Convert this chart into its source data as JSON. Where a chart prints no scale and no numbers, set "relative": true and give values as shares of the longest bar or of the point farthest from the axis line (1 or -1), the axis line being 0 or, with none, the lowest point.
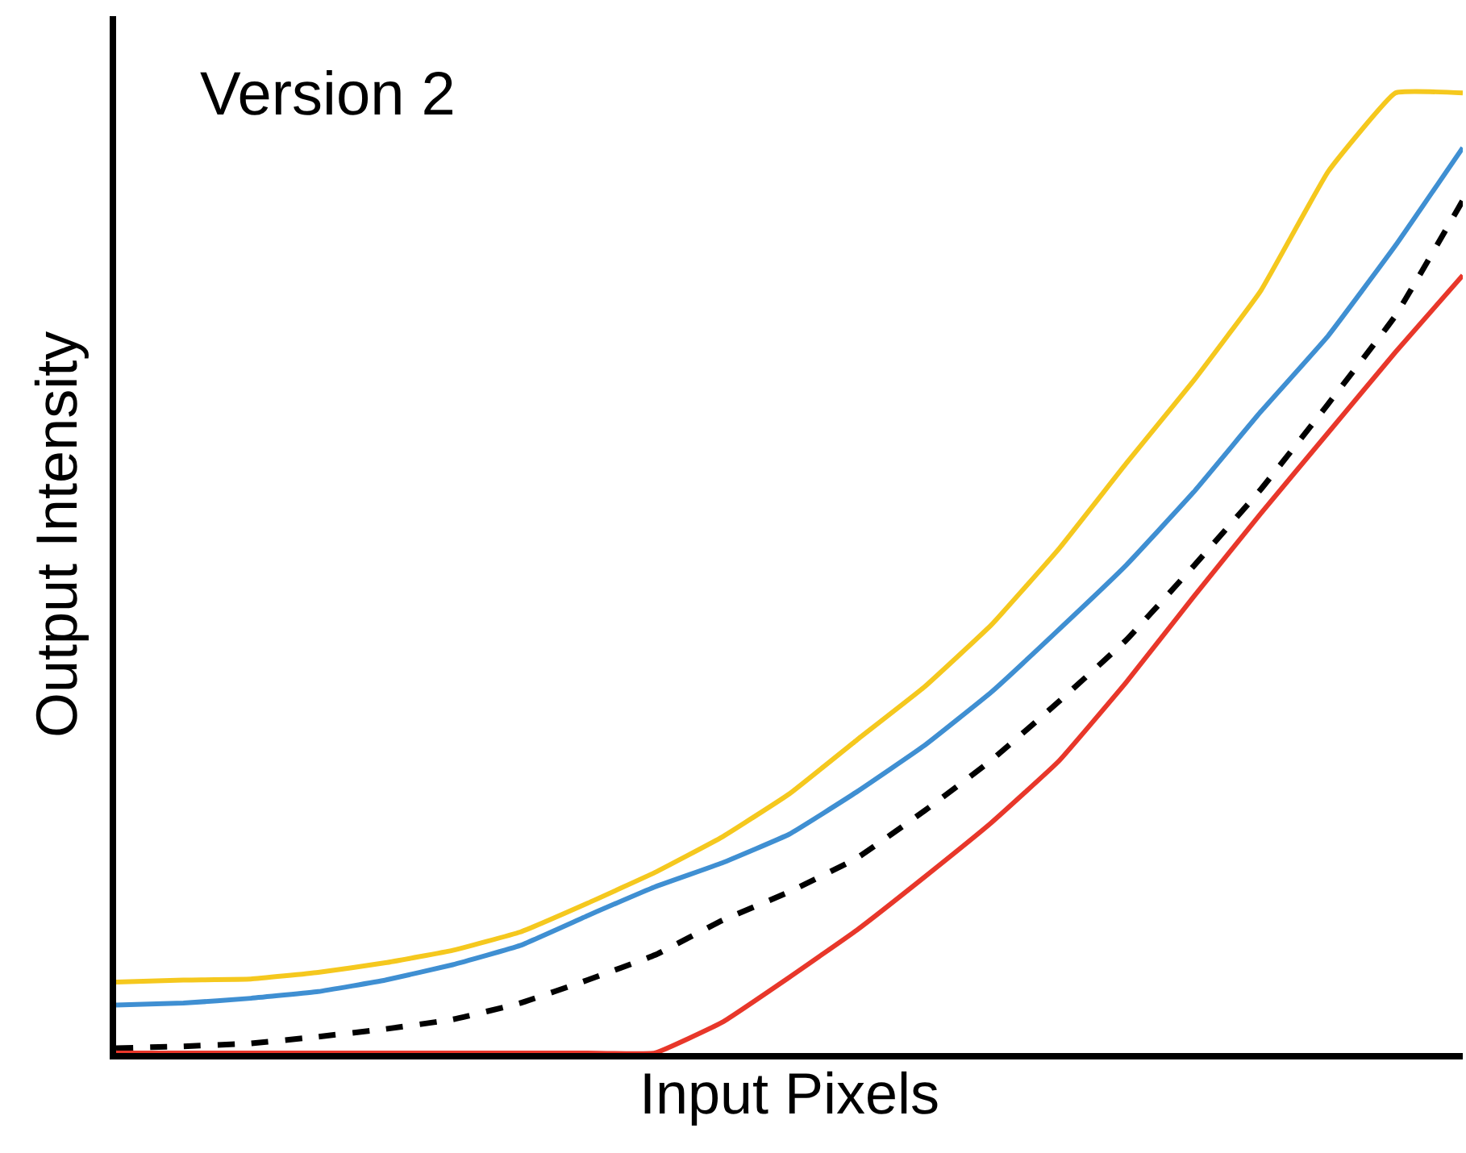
{
  "chart_data": {
    "type": "line",
    "relative": true,
    "xlabel": "Input Pixels",
    "ylabel": "Output Intensity",
    "annotations": [
      "Version 2"
    ],
    "categories": [
      null,
      null,
      null,
      null,
      null,
      null,
      null,
      null,
      null,
      null,
      null,
      null,
      null,
      null,
      null,
      null,
      null,
      null,
      null,
      null,
      null
    ],
    "series": [
      {
        "color": "#f5c81e",
        "line_style": "solid",
        "values": [
          0.074,
          0.076,
          0.077,
          0.084,
          0.094,
          0.107,
          0.126,
          0.156,
          0.188,
          0.225,
          0.27,
          0.326,
          0.381,
          0.446,
          0.525,
          0.614,
          0.7,
          0.794,
          0.918,
          1,
          1
        ]
      },
      {
        "color": "#3f8fd2",
        "line_style": "solid",
        "values": [
          0.05,
          0.052,
          0.057,
          0.064,
          0.076,
          0.092,
          0.112,
          0.143,
          0.173,
          0.198,
          0.228,
          0.272,
          0.32,
          0.376,
          0.441,
          0.508,
          0.584,
          0.668,
          0.747,
          0.841,
          0.943
        ]
      },
      {
        "color": "#000000",
        "line_style": "dashed",
        "values": [
          0.005,
          0.007,
          0.01,
          0.017,
          0.025,
          0.035,
          0.052,
          0.076,
          0.102,
          0.138,
          0.168,
          0.203,
          0.252,
          0.305,
          0.366,
          0.43,
          0.507,
          0.587,
          0.676,
          0.768,
          0.888
        ]
      },
      {
        "color": "#e8372a",
        "line_style": "solid",
        "values": [
          0,
          0,
          0,
          0,
          0,
          0,
          0,
          0,
          0,
          0.032,
          0.079,
          0.128,
          0.183,
          0.24,
          0.304,
          0.386,
          0.475,
          0.562,
          0.646,
          0.73,
          0.81
        ]
      }
    ]
  }
}
